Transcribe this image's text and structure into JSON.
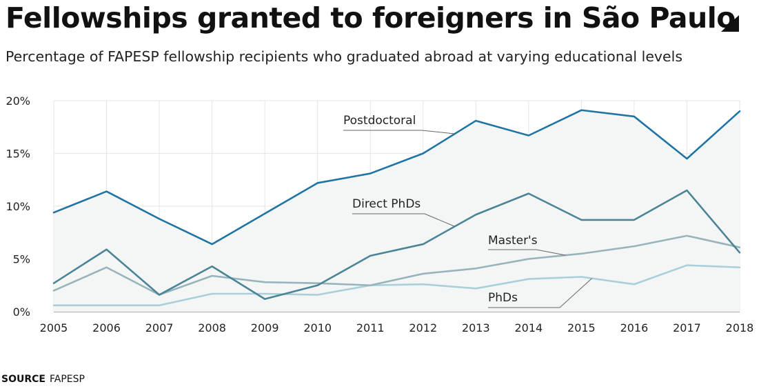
{
  "header": {
    "title": "Fellowships granted to foreigners in São Paulo",
    "subtitle": "Percentage of FAPESP fellowship recipients who graduated abroad at varying educational levels"
  },
  "footer": {
    "source_label": "SOURCE",
    "source_value": "FAPESP"
  },
  "icons": {
    "corner": "corner-triangle-icon"
  },
  "chart_data": {
    "type": "line",
    "title": "Fellowships granted to foreigners in São Paulo",
    "subtitle": "Percentage of FAPESP fellowship recipients who graduated abroad at varying educational levels",
    "xlabel": "",
    "ylabel": "",
    "x": [
      "2005",
      "2006",
      "2007",
      "2008",
      "2009",
      "2010",
      "2011",
      "2012",
      "2013",
      "2014",
      "2015",
      "2016",
      "2017",
      "2018"
    ],
    "ylim": [
      0,
      20
    ],
    "yticks": [
      0,
      5,
      10,
      15,
      20
    ],
    "ytick_labels": [
      "0%",
      "5%",
      "10%",
      "15%",
      "20%"
    ],
    "grid": true,
    "legend": "inline labels",
    "series": [
      {
        "name": "Postdoctoral",
        "color": "#1f74a3",
        "fill": "#f4f6f6",
        "values": [
          9.4,
          11.4,
          8.8,
          6.4,
          9.3,
          12.2,
          13.1,
          15.0,
          18.1,
          16.7,
          19.1,
          18.5,
          14.5,
          19.0
        ]
      },
      {
        "name": "Direct PhDs",
        "color": "#4a8496",
        "values": [
          2.7,
          5.9,
          1.6,
          4.3,
          1.2,
          2.5,
          5.3,
          6.4,
          9.2,
          11.2,
          8.7,
          8.7,
          11.5,
          5.6
        ]
      },
      {
        "name": "Master's",
        "color": "#97b4ba",
        "values": [
          2.0,
          4.2,
          1.6,
          3.4,
          2.8,
          2.7,
          2.5,
          3.6,
          4.1,
          5.0,
          5.5,
          6.2,
          7.2,
          6.1
        ]
      },
      {
        "name": "PhDs",
        "color": "#a9d0d8",
        "values": [
          0.6,
          0.6,
          0.6,
          1.7,
          1.7,
          1.6,
          2.5,
          2.6,
          2.2,
          3.1,
          3.3,
          2.6,
          4.4,
          4.2
        ]
      }
    ]
  }
}
